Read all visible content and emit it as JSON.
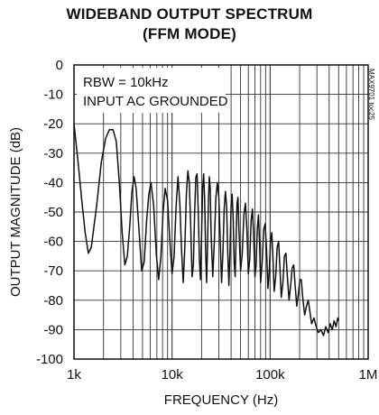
{
  "chart_data": {
    "type": "line",
    "title_line1": "WIDEBAND OUTPUT SPECTRUM",
    "title_line2": "(FFM MODE)",
    "xlabel": "FREQUENCY (Hz)",
    "ylabel": "OUTPUT MAGNITUDE (dB)",
    "x_scale": "log",
    "xlim": [
      1000,
      1000000
    ],
    "ylim": [
      -100,
      0
    ],
    "x_ticks": [
      {
        "value": 1000,
        "label": "1k"
      },
      {
        "value": 10000,
        "label": "10k"
      },
      {
        "value": 100000,
        "label": "100k"
      },
      {
        "value": 1000000,
        "label": "1M"
      }
    ],
    "y_ticks": [
      {
        "value": 0,
        "label": "0"
      },
      {
        "value": -10,
        "label": "-10"
      },
      {
        "value": -20,
        "label": "-20"
      },
      {
        "value": -30,
        "label": "-30"
      },
      {
        "value": -40,
        "label": "-40"
      },
      {
        "value": -50,
        "label": "-50"
      },
      {
        "value": -60,
        "label": "-60"
      },
      {
        "value": -70,
        "label": "-70"
      },
      {
        "value": -80,
        "label": "-80"
      },
      {
        "value": -90,
        "label": "-90"
      },
      {
        "value": -100,
        "label": "-100"
      }
    ],
    "grid": true,
    "annotations": [
      "RBW = 10kHz",
      "INPUT AC GROUNDED"
    ],
    "reference_code": "MAX9701 toc25",
    "series": [
      {
        "values": [
          [
            1000,
            -20
          ],
          [
            1100,
            -33
          ],
          [
            1200,
            -46
          ],
          [
            1300,
            -57
          ],
          [
            1400,
            -64
          ],
          [
            1500,
            -62
          ],
          [
            1700,
            -48
          ],
          [
            1900,
            -33
          ],
          [
            2100,
            -25
          ],
          [
            2300,
            -22
          ],
          [
            2500,
            -22
          ],
          [
            2700,
            -26
          ],
          [
            2900,
            -40
          ],
          [
            3100,
            -57
          ],
          [
            3300,
            -68
          ],
          [
            3500,
            -65
          ],
          [
            3700,
            -55
          ],
          [
            3900,
            -43
          ],
          [
            4100,
            -38
          ],
          [
            4300,
            -42
          ],
          [
            4600,
            -56
          ],
          [
            4900,
            -70
          ],
          [
            5200,
            -67
          ],
          [
            5500,
            -53
          ],
          [
            5800,
            -44
          ],
          [
            6100,
            -40
          ],
          [
            6500,
            -48
          ],
          [
            6900,
            -64
          ],
          [
            7300,
            -73
          ],
          [
            7700,
            -65
          ],
          [
            8100,
            -50
          ],
          [
            8500,
            -42
          ],
          [
            9000,
            -46
          ],
          [
            9500,
            -60
          ],
          [
            10000,
            -71
          ],
          [
            10500,
            -65
          ],
          [
            11000,
            -48
          ],
          [
            11500,
            -38
          ],
          [
            12000,
            -47
          ],
          [
            12500,
            -63
          ],
          [
            13000,
            -74
          ],
          [
            13500,
            -62
          ],
          [
            14000,
            -44
          ],
          [
            14500,
            -36
          ],
          [
            15000,
            -40
          ],
          [
            15500,
            -55
          ],
          [
            16000,
            -72
          ],
          [
            16500,
            -68
          ],
          [
            17000,
            -50
          ],
          [
            17500,
            -38
          ],
          [
            18000,
            -37
          ],
          [
            18500,
            -50
          ],
          [
            19000,
            -66
          ],
          [
            19500,
            -73
          ],
          [
            20000,
            -58
          ],
          [
            20500,
            -42
          ],
          [
            21000,
            -37
          ],
          [
            21500,
            -46
          ],
          [
            22000,
            -63
          ],
          [
            22500,
            -74
          ],
          [
            23000,
            -62
          ],
          [
            23500,
            -46
          ],
          [
            24000,
            -38
          ],
          [
            24500,
            -42
          ],
          [
            25000,
            -57
          ],
          [
            26000,
            -72
          ],
          [
            27000,
            -60
          ],
          [
            28000,
            -45
          ],
          [
            29000,
            -40
          ],
          [
            30000,
            -45
          ],
          [
            31000,
            -60
          ],
          [
            32000,
            -74
          ],
          [
            33000,
            -64
          ],
          [
            34000,
            -49
          ],
          [
            35000,
            -43
          ],
          [
            36000,
            -48
          ],
          [
            37000,
            -64
          ],
          [
            38000,
            -75
          ],
          [
            39000,
            -63
          ],
          [
            40000,
            -48
          ],
          [
            41000,
            -44
          ],
          [
            42000,
            -52
          ],
          [
            43000,
            -67
          ],
          [
            44000,
            -72
          ],
          [
            45000,
            -59
          ],
          [
            46000,
            -47
          ],
          [
            47000,
            -45
          ],
          [
            48000,
            -55
          ],
          [
            50000,
            -70
          ],
          [
            52000,
            -64
          ],
          [
            54000,
            -51
          ],
          [
            56000,
            -47
          ],
          [
            58000,
            -56
          ],
          [
            60000,
            -71
          ],
          [
            62000,
            -66
          ],
          [
            64000,
            -53
          ],
          [
            66000,
            -49
          ],
          [
            68000,
            -58
          ],
          [
            70000,
            -72
          ],
          [
            72000,
            -68
          ],
          [
            74000,
            -56
          ],
          [
            76000,
            -51
          ],
          [
            78000,
            -60
          ],
          [
            80000,
            -74
          ],
          [
            83000,
            -67
          ],
          [
            86000,
            -56
          ],
          [
            89000,
            -54
          ],
          [
            92000,
            -63
          ],
          [
            95000,
            -76
          ],
          [
            98000,
            -70
          ],
          [
            101000,
            -60
          ],
          [
            104000,
            -57
          ],
          [
            107000,
            -66
          ],
          [
            110000,
            -77
          ],
          [
            114000,
            -72
          ],
          [
            118000,
            -62
          ],
          [
            122000,
            -60
          ],
          [
            126000,
            -69
          ],
          [
            130000,
            -79
          ],
          [
            135000,
            -74
          ],
          [
            140000,
            -65
          ],
          [
            145000,
            -64
          ],
          [
            150000,
            -72
          ],
          [
            156000,
            -80
          ],
          [
            162000,
            -75
          ],
          [
            168000,
            -69
          ],
          [
            174000,
            -68
          ],
          [
            180000,
            -75
          ],
          [
            187000,
            -82
          ],
          [
            194000,
            -78
          ],
          [
            201000,
            -73
          ],
          [
            208000,
            -73
          ],
          [
            215000,
            -79
          ],
          [
            225000,
            -85
          ],
          [
            235000,
            -82
          ],
          [
            245000,
            -80
          ],
          [
            255000,
            -84
          ],
          [
            265000,
            -88
          ],
          [
            280000,
            -86
          ],
          [
            295000,
            -89
          ],
          [
            310000,
            -91
          ],
          [
            330000,
            -90
          ],
          [
            350000,
            -92
          ],
          [
            370000,
            -89
          ],
          [
            390000,
            -91
          ],
          [
            410000,
            -88
          ],
          [
            430000,
            -90
          ],
          [
            450000,
            -87
          ],
          [
            470000,
            -89
          ],
          [
            490000,
            -86
          ],
          [
            500000,
            -87
          ]
        ]
      }
    ]
  }
}
